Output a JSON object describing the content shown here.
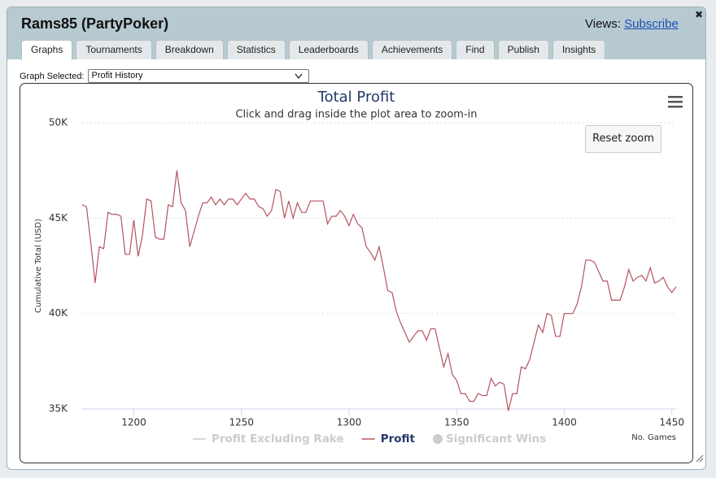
{
  "header": {
    "title": "Rams85 (PartyPoker)",
    "views_label": "Views:",
    "views_link": "Subscribe",
    "close": "✖"
  },
  "tabs": [
    {
      "label": "Graphs",
      "active": true
    },
    {
      "label": "Tournaments"
    },
    {
      "label": "Breakdown"
    },
    {
      "label": "Statistics"
    },
    {
      "label": "Leaderboards"
    },
    {
      "label": "Achievements"
    },
    {
      "label": "Find"
    },
    {
      "label": "Publish"
    },
    {
      "label": "Insights"
    }
  ],
  "graph_selector": {
    "label": "Graph Selected:",
    "value": "Profit History"
  },
  "reset_zoom": "Reset zoom",
  "chart_data": {
    "type": "line",
    "title": "Total Profit",
    "subtitle": "Click and drag inside the plot area to zoom-in",
    "y_label": "Cumulative Total (USD)",
    "x_label": "No. Games",
    "grid": true,
    "xlim": [
      1176,
      1452
    ],
    "xticks": [
      1200,
      1250,
      1300,
      1350,
      1400,
      1450
    ],
    "ylim": [
      35000,
      50000
    ],
    "yticks": [
      {
        "value": 35000,
        "label": "35K"
      },
      {
        "value": 40000,
        "label": "40K"
      },
      {
        "value": 45000,
        "label": "45K"
      },
      {
        "value": 50000,
        "label": "50K"
      }
    ],
    "x": [
      1176,
      1178,
      1180,
      1182,
      1184,
      1186,
      1188,
      1190,
      1192,
      1194,
      1196,
      1198,
      1200,
      1202,
      1204,
      1206,
      1208,
      1210,
      1212,
      1214,
      1216,
      1218,
      1220,
      1222,
      1224,
      1226,
      1228,
      1230,
      1232,
      1234,
      1236,
      1238,
      1240,
      1242,
      1244,
      1246,
      1248,
      1250,
      1252,
      1254,
      1256,
      1258,
      1260,
      1262,
      1264,
      1266,
      1268,
      1270,
      1272,
      1274,
      1276,
      1278,
      1280,
      1282,
      1284,
      1286,
      1288,
      1290,
      1292,
      1294,
      1296,
      1298,
      1300,
      1302,
      1304,
      1306,
      1308,
      1310,
      1312,
      1314,
      1316,
      1318,
      1320,
      1322,
      1324,
      1326,
      1328,
      1330,
      1332,
      1334,
      1336,
      1338,
      1340,
      1342,
      1344,
      1346,
      1348,
      1350,
      1352,
      1354,
      1356,
      1358,
      1360,
      1362,
      1364,
      1366,
      1368,
      1370,
      1372,
      1374,
      1376,
      1378,
      1380,
      1382,
      1384,
      1386,
      1388,
      1390,
      1392,
      1394,
      1396,
      1398,
      1400,
      1402,
      1404,
      1406,
      1408,
      1410,
      1412,
      1414,
      1416,
      1418,
      1420,
      1422,
      1424,
      1426,
      1428,
      1430,
      1432,
      1434,
      1436,
      1438,
      1440,
      1442,
      1444,
      1446,
      1448,
      1450,
      1452
    ],
    "series": [
      {
        "name": "Profit Excluding Rake",
        "visible": false,
        "marker": "line"
      },
      {
        "name": "Profit",
        "visible": true,
        "marker": "line",
        "color": "#b4545f",
        "values": [
          45700,
          45600,
          43700,
          41600,
          43500,
          43400,
          45300,
          45200,
          45200,
          45100,
          43100,
          43100,
          44900,
          43000,
          44100,
          46000,
          45900,
          44000,
          43900,
          43900,
          45700,
          45600,
          47500,
          45800,
          45400,
          43500,
          44300,
          45100,
          45800,
          45800,
          46100,
          45700,
          46000,
          45700,
          46000,
          46000,
          45700,
          46000,
          46300,
          46000,
          46000,
          45600,
          45500,
          45100,
          45400,
          46500,
          46400,
          45000,
          45900,
          45000,
          45800,
          45300,
          45300,
          45900,
          45900,
          45900,
          45900,
          44700,
          45100,
          45100,
          45400,
          45100,
          44600,
          45200,
          44700,
          44500,
          43500,
          43200,
          42800,
          43500,
          42400,
          41200,
          41100,
          40100,
          39500,
          39000,
          38500,
          38800,
          39100,
          39100,
          38600,
          39200,
          39200,
          38200,
          37200,
          37900,
          36800,
          36500,
          35800,
          35800,
          35400,
          35400,
          35800,
          35700,
          35700,
          36600,
          36200,
          36400,
          36300,
          34900,
          35800,
          35800,
          37200,
          37100,
          37600,
          38500,
          39400,
          39000,
          40000,
          39900,
          38800,
          38800,
          40000,
          40000,
          40000,
          40500,
          41400,
          42800,
          42800,
          42700,
          42200,
          41700,
          41700,
          40700,
          40700,
          40700,
          41400,
          42300,
          41700,
          41900,
          42000,
          41700,
          42400,
          41600,
          41700,
          41900,
          41400,
          41100,
          41400
        ]
      },
      {
        "name": "Significant Wins",
        "visible": false,
        "marker": "circle"
      }
    ]
  }
}
